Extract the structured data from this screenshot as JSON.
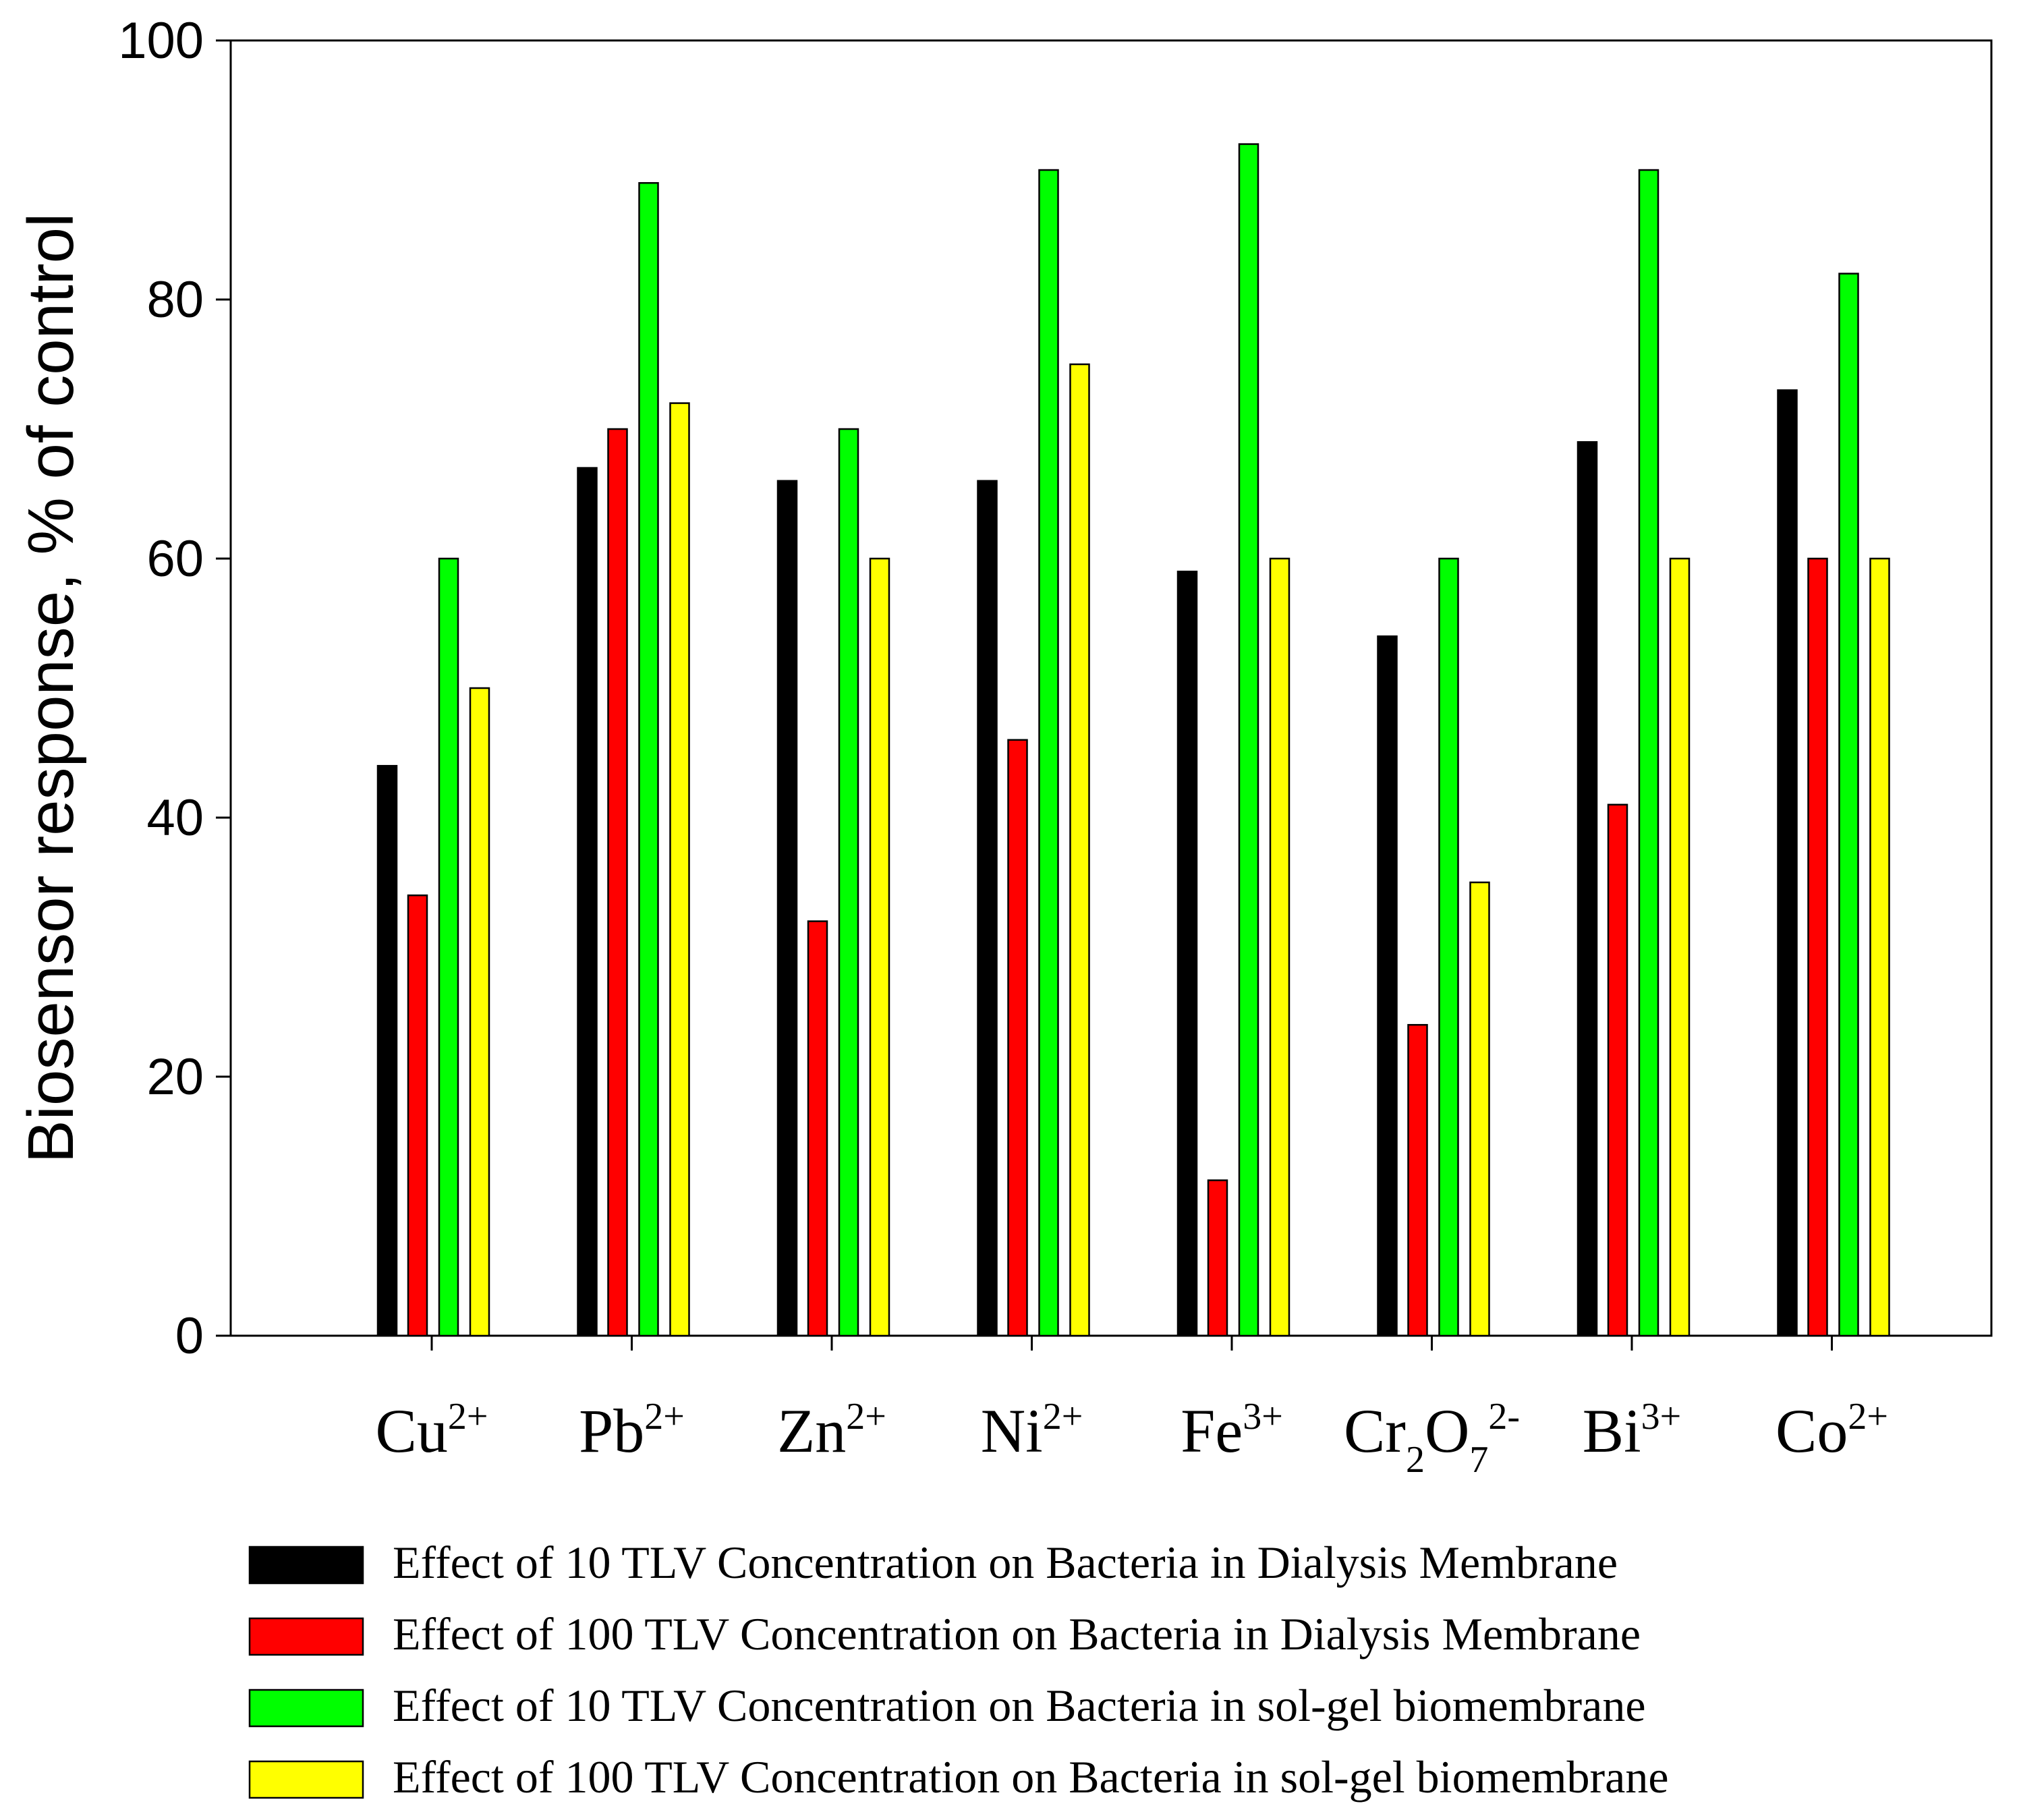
{
  "chart_data": {
    "type": "bar",
    "title": "",
    "xlabel": "",
    "ylabel": "Biosensor response, % of control",
    "ylim": [
      0,
      100
    ],
    "yticks": [
      0,
      20,
      40,
      60,
      80,
      100
    ],
    "grid": false,
    "legend_position": "bottom",
    "categories": [
      {
        "base": "Cu",
        "sup": "2+"
      },
      {
        "base": "Pb",
        "sup": "2+"
      },
      {
        "base": "Zn",
        "sup": "2+"
      },
      {
        "base": "Ni",
        "sup": "2+"
      },
      {
        "base": "Fe",
        "sup": "3+"
      },
      {
        "base": "Cr",
        "sub": "2",
        "base2": "O",
        "sub2": "7",
        "sup": "2-"
      },
      {
        "base": "Bi",
        "sup": "3+"
      },
      {
        "base": "Co",
        "sup": "2+"
      }
    ],
    "series": [
      {
        "name": "Effect of 10 TLV Concentration on Bacteria in Dialysis Membrane",
        "color": "#000000",
        "values": [
          44,
          67,
          66,
          66,
          59,
          54,
          69,
          73
        ]
      },
      {
        "name": "Effect of 100 TLV Concentration on Bacteria in Dialysis Membrane",
        "color": "#ff0000",
        "values": [
          34,
          70,
          32,
          46,
          12,
          24,
          41,
          60
        ]
      },
      {
        "name": "Effect of 10 TLV Concentration on Bacteria in sol-gel biomembrane",
        "color": "#00ff00",
        "values": [
          60,
          89,
          70,
          90,
          92,
          60,
          90,
          82
        ]
      },
      {
        "name": "Effect of 100 TLV Concentration on Bacteria in sol-gel biomembrane",
        "color": "#ffff00",
        "values": [
          50,
          72,
          60,
          75,
          60,
          35,
          60,
          60
        ]
      }
    ]
  }
}
